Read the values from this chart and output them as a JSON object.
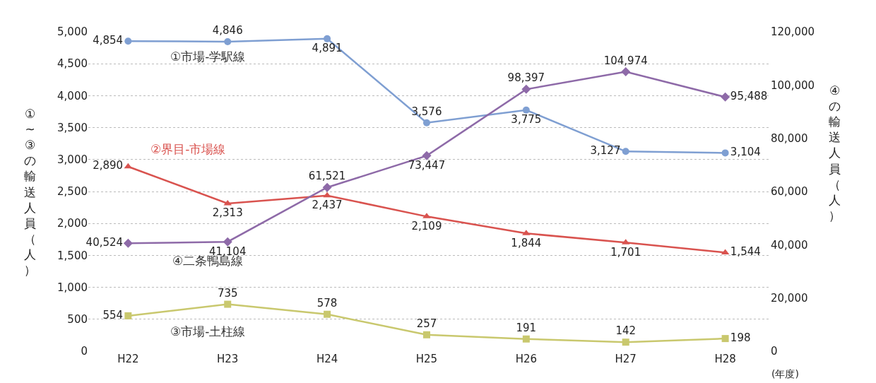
{
  "chart_data": {
    "type": "line",
    "xlabel": "(年度)",
    "ylabel": "①~③の輸送人員（人）",
    "y2label": "④の輸送人員（人）",
    "categories": [
      "H22",
      "H23",
      "H24",
      "H25",
      "H26",
      "H27",
      "H28"
    ],
    "series": [
      {
        "name": "①市場-学駅線",
        "color": "#7f9fd2",
        "marker": "circle",
        "values": [
          4854,
          4846,
          4891,
          3576,
          3775,
          3127,
          3104
        ],
        "value_labels": [
          "4,854",
          "4,846",
          "4,891",
          "3,576",
          "3,775",
          "3,127",
          "3,104"
        ]
      },
      {
        "name": "②界目-市場線",
        "color": "#d9534f",
        "marker": "triangle",
        "values": [
          2890,
          2313,
          2437,
          2109,
          1844,
          1701,
          1544
        ],
        "value_labels": [
          "2,890",
          "2,313",
          "2,437",
          "2,109",
          "1,844",
          "1,701",
          "1,544"
        ]
      },
      {
        "name": "③市場-土柱線",
        "color": "#c9c86e",
        "marker": "square",
        "values": [
          554,
          735,
          578,
          257,
          191,
          142,
          198
        ],
        "value_labels": [
          "554",
          "735",
          "578",
          "257",
          "191",
          "142",
          "198"
        ]
      },
      {
        "name": "④二条鴨島線",
        "color": "#8e6aa8",
        "marker": "diamond",
        "axis": "y2",
        "values": [
          40524,
          41104,
          61521,
          73447,
          98397,
          104974,
          95488
        ],
        "value_labels": [
          "40,524",
          "41,104",
          "61,521",
          "73,447",
          "98,397",
          "104,974",
          "95,488"
        ]
      }
    ],
    "ylim": [
      0,
      5000
    ],
    "yticks": [
      0,
      500,
      {
        "value": 1000,
        "label": "1,000"
      },
      {
        "value": 1500,
        "label": "1,500"
      },
      {
        "value": 2000,
        "label": "2,000"
      },
      {
        "value": 2500,
        "label": "2,500"
      },
      {
        "value": 3000,
        "label": "3,000"
      },
      {
        "value": 3500,
        "label": "3,500"
      },
      {
        "value": 4000,
        "label": "4,000"
      },
      {
        "value": 4500,
        "label": "4,500"
      },
      {
        "value": 5000,
        "label": "5,000"
      }
    ],
    "y2lim": [
      0,
      120000
    ],
    "y2ticks": [
      0,
      {
        "value": 20000,
        "label": "20,000"
      },
      {
        "value": 40000,
        "label": "40,000"
      },
      {
        "value": 60000,
        "label": "60,000"
      },
      {
        "value": 80000,
        "label": "80,000"
      },
      {
        "value": 100000,
        "label": "100,000"
      },
      {
        "value": 120000,
        "label": "120,000"
      }
    ],
    "grid": "y",
    "line_style": "solid"
  }
}
